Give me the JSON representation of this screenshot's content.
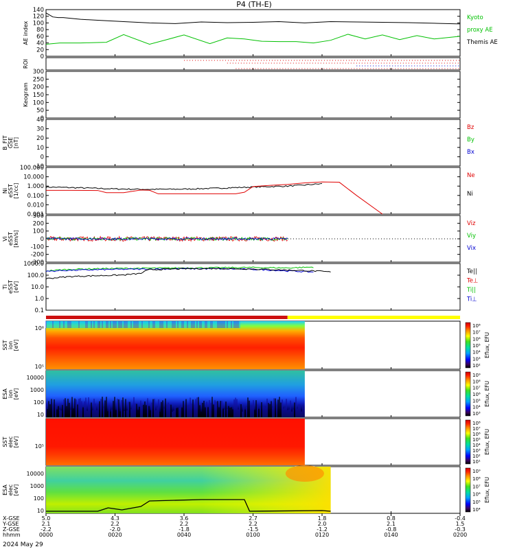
{
  "title": "P4 (TH-E)",
  "date_label": "2024 May 29",
  "colors": {
    "black": "#000000",
    "green": "#00c000",
    "red": "#e00000",
    "blue": "#0000d0",
    "mode_bar_red": "#cc1010",
    "mode_bar_yellow": "#ffff00"
  },
  "chart_data": [
    {
      "type": "line",
      "panel": "ae",
      "ylabel": "AE index",
      "yticks": [
        "140",
        "120",
        "100",
        "80",
        "60",
        "40",
        "20",
        "0"
      ],
      "ylim": [
        0,
        140
      ],
      "legend": [
        {
          "label": "Kyoto",
          "color": "green"
        },
        {
          "label": "proxy AE",
          "color": "green"
        },
        {
          "label": "Themis AE",
          "color": "black"
        }
      ],
      "series": [
        {
          "color": "black",
          "x": [
            0,
            2,
            4,
            7,
            10,
            20,
            30,
            45,
            60,
            75,
            90,
            105,
            120,
            135,
            150,
            165,
            180,
            195,
            210,
            225,
            240
          ],
          "y": [
            130,
            124,
            118,
            116,
            116,
            111,
            108,
            104,
            100,
            98,
            103,
            101,
            102,
            104,
            100,
            104,
            103,
            102,
            101,
            99,
            97
          ]
        },
        {
          "color": "green",
          "x": [
            0,
            8,
            20,
            35,
            45,
            60,
            70,
            80,
            95,
            105,
            115,
            125,
            135,
            145,
            155,
            165,
            175,
            185,
            195,
            205,
            215,
            225,
            240
          ],
          "y": [
            36,
            40,
            40,
            42,
            65,
            36,
            50,
            64,
            38,
            55,
            52,
            45,
            44,
            44,
            40,
            48,
            66,
            52,
            64,
            50,
            62,
            52,
            60
          ]
        }
      ]
    },
    {
      "type": "scatter",
      "panel": "roi",
      "ylabel": "ROI",
      "dotted_rows": [
        {
          "color": "red",
          "x0": 80,
          "x1": 240
        },
        {
          "color": "red",
          "x0": 105,
          "x1": 240
        },
        {
          "color": "blue",
          "x0": 180,
          "x1": 240
        },
        {
          "color": "red",
          "x0": 110,
          "x1": 240
        }
      ]
    },
    {
      "type": "line",
      "panel": "keogram",
      "ylabel": "Keogram",
      "yticks": [
        "300",
        "250",
        "200",
        "150",
        "100",
        "50",
        "0"
      ],
      "ylim": [
        0,
        300
      ],
      "series": []
    },
    {
      "type": "line",
      "panel": "bfit",
      "ylabel": [
        "B_FIT",
        "GSE",
        "[nT]"
      ],
      "yticks": [
        "40",
        "30",
        "20",
        "10",
        "0",
        "-10"
      ],
      "ylim": [
        -10,
        40
      ],
      "legend": [
        {
          "label": "Bz",
          "color": "red"
        },
        {
          "label": "By",
          "color": "green"
        },
        {
          "label": "Bx",
          "color": "blue"
        }
      ],
      "series": []
    },
    {
      "type": "line",
      "panel": "density",
      "ylabel": [
        "Ni",
        "eSST",
        "[1/cc]"
      ],
      "yticks": [
        "100.000",
        "10.000",
        "1.000",
        "0.100",
        "0.010",
        "0.001"
      ],
      "ylim": [
        0.001,
        100
      ],
      "log": true,
      "legend": [
        {
          "label": "Ne",
          "color": "red"
        },
        {
          "label": "Ni",
          "color": "black"
        }
      ],
      "series": [
        {
          "color": "black",
          "x": [
            0,
            20,
            40,
            60,
            80,
            100,
            120,
            140,
            150,
            160
          ],
          "y": [
            0.8,
            0.65,
            0.5,
            0.45,
            0.48,
            0.6,
            0.8,
            1.0,
            1.3,
            1.8
          ]
        },
        {
          "color": "red",
          "x": [
            0,
            15,
            30,
            35,
            45,
            55,
            60,
            65,
            70,
            80,
            90,
            100,
            110,
            115,
            120,
            130,
            140,
            150,
            160,
            170,
            180,
            195
          ],
          "y": [
            0.35,
            0.35,
            0.34,
            0.2,
            0.2,
            0.38,
            0.36,
            0.15,
            0.15,
            0.15,
            0.15,
            0.15,
            0.15,
            0.22,
            0.9,
            1.2,
            1.5,
            2.2,
            2.8,
            2.6,
            0.1,
            0.001
          ]
        }
      ]
    },
    {
      "type": "line",
      "panel": "velocity",
      "ylabel": [
        "Vi",
        "eSST",
        "[km/s]"
      ],
      "yticks": [
        "300",
        "200",
        "100",
        "0",
        "-100",
        "-200",
        "-300"
      ],
      "ylim": [
        -300,
        300
      ],
      "legend": [
        {
          "label": "Viz",
          "color": "red"
        },
        {
          "label": "Viy",
          "color": "green"
        },
        {
          "label": "Vix",
          "color": "blue"
        }
      ],
      "series": [
        {
          "color": "red",
          "x_range": [
            0,
            140
          ],
          "center": 0,
          "spread": 30
        },
        {
          "color": "green",
          "x_range": [
            0,
            140
          ],
          "center": 0,
          "spread": 20
        },
        {
          "color": "blue",
          "x_range": [
            0,
            140
          ],
          "center": 0,
          "spread": 15
        }
      ],
      "zero_line_dotted": true
    },
    {
      "type": "line",
      "panel": "temperature",
      "ylabel": [
        "Ti",
        "eSST",
        "[eV]"
      ],
      "yticks": [
        "1000.0",
        "100.0",
        "10.0",
        "1.0",
        "0.1"
      ],
      "ylim": [
        0.1,
        5000
      ],
      "log": true,
      "legend": [
        {
          "label": "Te||",
          "color": "black"
        },
        {
          "label": "Te⊥",
          "color": "red"
        },
        {
          "label": "Ti||",
          "color": "green"
        },
        {
          "label": "Ti⊥",
          "color": "blue"
        }
      ],
      "series": [
        {
          "color": "green",
          "x": [
            0,
            10,
            20,
            40,
            60,
            80,
            100,
            120,
            140,
            155
          ],
          "y": [
            900,
            1200,
            1400,
            1600,
            1700,
            1800,
            1900,
            2000,
            1800,
            2200
          ]
        },
        {
          "color": "blue",
          "x": [
            0,
            10,
            20,
            40,
            60,
            80,
            100,
            120,
            140,
            155
          ],
          "y": [
            800,
            1000,
            1100,
            1300,
            1400,
            1500,
            1500,
            1300,
            900,
            700
          ]
        },
        {
          "color": "black",
          "x": [
            0,
            5,
            15,
            30,
            45,
            55,
            60,
            80,
            100,
            120,
            140,
            155,
            165
          ],
          "y": [
            150,
            180,
            250,
            300,
            350,
            500,
            1200,
            1500,
            1600,
            1400,
            1100,
            900,
            700
          ]
        }
      ]
    },
    {
      "type": "heatmap",
      "panel": "sst_ion",
      "ylabel": [
        "SST",
        "ion",
        "[eV]"
      ],
      "yticks": [
        "10⁶",
        "10⁵"
      ],
      "colorbar_label": "Eflux, EFU",
      "colorbar_ticks": [
        "10⁸",
        "10⁷",
        "10⁶",
        "10⁵",
        "10⁴",
        "10³",
        "10²"
      ],
      "data_x_end": 150
    },
    {
      "type": "heatmap",
      "panel": "esa_ion",
      "ylabel": [
        "ESA",
        "ion",
        "[eV]"
      ],
      "yticks": [
        "10000",
        "1000",
        "100",
        "10"
      ],
      "colorbar_label": "Eflux, EFU",
      "colorbar_ticks": [
        "10⁹",
        "10⁸",
        "10⁷",
        "10⁶",
        "10⁵",
        "10⁴",
        "10³"
      ],
      "data_x_end": 150
    },
    {
      "type": "heatmap",
      "panel": "sst_elec",
      "ylabel": [
        "SST",
        "elec",
        "[eV]"
      ],
      "yticks": [
        "10⁵"
      ],
      "colorbar_label": "Eflux, EFU",
      "colorbar_ticks": [
        "10⁸",
        "10⁷",
        "10⁶",
        "10⁵",
        "10⁴",
        "10³",
        "10²",
        "10¹"
      ],
      "data_x_end": 150
    },
    {
      "type": "heatmap",
      "panel": "esa_elec",
      "ylabel": [
        "ESA",
        "elec",
        "[eV]"
      ],
      "yticks": [
        "10000",
        "1000",
        "100",
        "10"
      ],
      "colorbar_label": "Eflux, EFU",
      "colorbar_ticks": [
        "10⁹",
        "10⁸",
        "10⁷",
        "10⁶",
        "10⁵",
        "10⁴"
      ],
      "data_x_end": 165
    }
  ],
  "mode_bar": {
    "red_until": 140
  },
  "x_axis": {
    "row_labels": [
      "X-GSE",
      "Y-GSE",
      "Z-GSE",
      "hhmm"
    ],
    "ticks": [
      {
        "x": 0,
        "xgse": "5.0",
        "ygse": "2.1",
        "zgse": "-2.2",
        "hhmm": "0000"
      },
      {
        "x": 40,
        "xgse": "4.3",
        "ygse": "2.2",
        "zgse": "-2.0",
        "hhmm": "0020"
      },
      {
        "x": 80,
        "xgse": "3.6",
        "ygse": "2.2",
        "zgse": "-1.8",
        "hhmm": "0040"
      },
      {
        "x": 120,
        "xgse": "2.7",
        "ygse": "2.2",
        "zgse": "-1.5",
        "hhmm": "0100"
      },
      {
        "x": 160,
        "xgse": "1.8",
        "ygse": "2.0",
        "zgse": "-1.2",
        "hhmm": "0120"
      },
      {
        "x": 200,
        "xgse": "0.8",
        "ygse": "2.1",
        "zgse": "-0.8",
        "hhmm": "0140"
      },
      {
        "x": 240,
        "xgse": "-0.4",
        "ygse": "1.5",
        "zgse": "-0.3",
        "hhmm": "0200"
      }
    ],
    "xlim": [
      0,
      240
    ]
  }
}
